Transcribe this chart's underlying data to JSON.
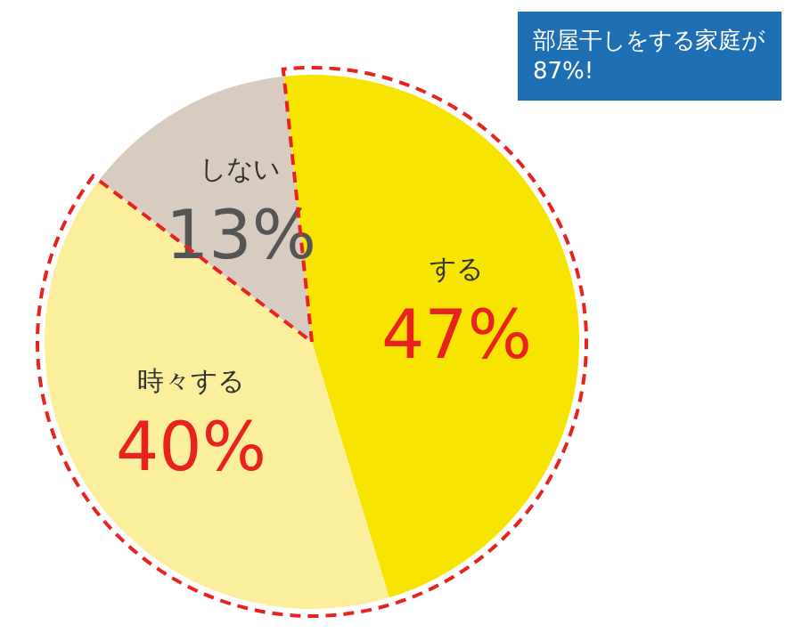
{
  "chart_data": {
    "type": "pie",
    "categories": [
      "する",
      "時々する",
      "しない"
    ],
    "values": [
      47,
      40,
      13
    ],
    "value_labels": [
      "47%",
      "40%",
      "13%"
    ],
    "colors": [
      "#f7e400",
      "#fbee9c",
      "#d8cbbf"
    ],
    "annotations": [
      "部屋干しをする家庭が 87%!"
    ],
    "legend": false
  }
}
